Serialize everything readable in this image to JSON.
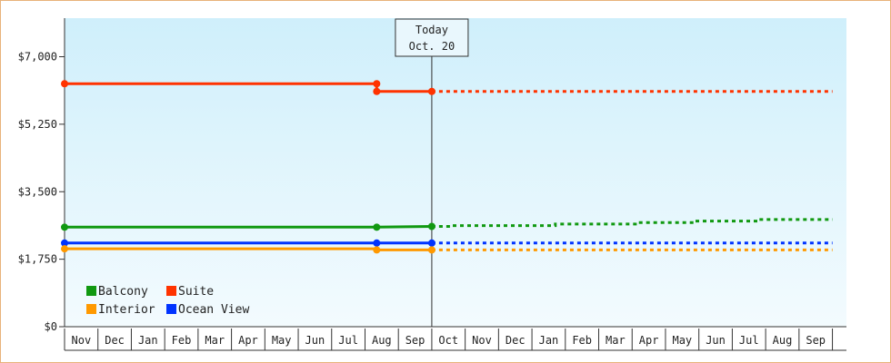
{
  "chart_data": {
    "type": "line",
    "categories": [
      "Nov",
      "Dec",
      "Jan",
      "Feb",
      "Mar",
      "Apr",
      "May",
      "Jun",
      "Jul",
      "Aug",
      "Sep",
      "Oct",
      "Nov",
      "Dec",
      "Jan",
      "Feb",
      "Mar",
      "Apr",
      "May",
      "Jun",
      "Jul",
      "Aug",
      "Sep"
    ],
    "ylim": [
      0,
      8000
    ],
    "yticks": [
      {
        "value": 0,
        "label": "$0"
      },
      {
        "value": 1750,
        "label": "$1,750"
      },
      {
        "value": 3500,
        "label": "$3,500"
      },
      {
        "value": 5250,
        "label": "$5,250"
      },
      {
        "value": 7000,
        "label": "$7,000"
      }
    ],
    "today": {
      "line1": "Today",
      "line2": "Oct. 20",
      "index": 11
    },
    "series": [
      {
        "name": "Suite",
        "color": "#ff3300",
        "actual": [
          [
            0,
            6300
          ],
          [
            9.35,
            6300
          ],
          [
            9.35,
            6100
          ],
          [
            11,
            6100
          ]
        ],
        "markers": [
          [
            0,
            6300
          ],
          [
            9.35,
            6300
          ],
          [
            9.35,
            6100
          ],
          [
            11,
            6100
          ]
        ],
        "forecast": [
          [
            11,
            6100
          ],
          [
            23,
            6100
          ]
        ]
      },
      {
        "name": "Balcony",
        "color": "#119911",
        "actual": [
          [
            0,
            2580
          ],
          [
            9.35,
            2580
          ],
          [
            11,
            2600
          ]
        ],
        "markers": [
          [
            0,
            2580
          ],
          [
            9.35,
            2580
          ],
          [
            11,
            2600
          ]
        ],
        "forecast": [
          [
            11,
            2600
          ],
          [
            11.6,
            2600
          ],
          [
            11.6,
            2620
          ],
          [
            14.7,
            2620
          ],
          [
            14.7,
            2660
          ],
          [
            17.1,
            2660
          ],
          [
            17.1,
            2700
          ],
          [
            18.9,
            2700
          ],
          [
            18.9,
            2740
          ],
          [
            20.8,
            2740
          ],
          [
            20.8,
            2780
          ],
          [
            23,
            2780
          ]
        ]
      },
      {
        "name": "Ocean View",
        "color": "#0033ff",
        "actual": [
          [
            0,
            2170
          ],
          [
            11,
            2170
          ]
        ],
        "markers": [
          [
            0,
            2170
          ],
          [
            9.35,
            2170
          ],
          [
            11,
            2170
          ]
        ],
        "forecast": [
          [
            11,
            2170
          ],
          [
            23,
            2170
          ]
        ]
      },
      {
        "name": "Interior",
        "color": "#ff9900",
        "actual": [
          [
            0,
            2020
          ],
          [
            9.35,
            2020
          ],
          [
            9.35,
            1990
          ],
          [
            11,
            1990
          ]
        ],
        "markers": [
          [
            0,
            2020
          ],
          [
            9.35,
            1990
          ],
          [
            11,
            1990
          ]
        ],
        "forecast": [
          [
            11,
            1990
          ],
          [
            23,
            1990
          ]
        ]
      }
    ],
    "legend": {
      "placement": "bottom-left",
      "rows": [
        [
          {
            "name": "Balcony",
            "color": "#119911"
          },
          {
            "name": "Suite",
            "color": "#ff3300"
          }
        ],
        [
          {
            "name": "Interior",
            "color": "#ff9900"
          },
          {
            "name": "Ocean View",
            "color": "#0033ff"
          }
        ]
      ]
    },
    "background": {
      "top": "#cfeffb",
      "bottom": "#f3fbfe"
    }
  }
}
